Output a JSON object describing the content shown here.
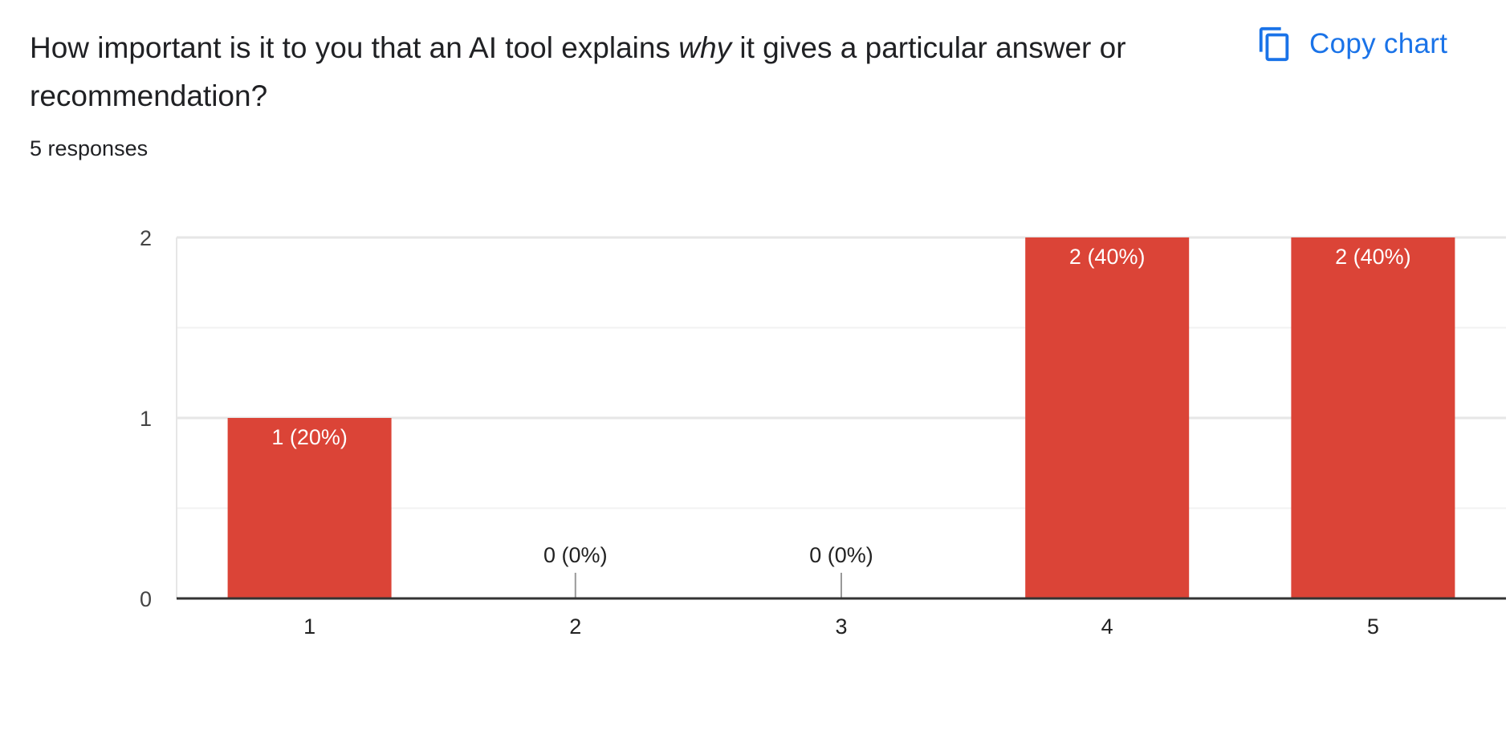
{
  "question": {
    "before": "How important is it to you that an AI tool explains ",
    "emphasis": "why",
    "after": " it gives a particular answer or recommendation?"
  },
  "response_count": "5 responses",
  "copy_button": {
    "label": "Copy chart",
    "icon": "copy-icon"
  },
  "colors": {
    "bar": "#db4437",
    "accent": "#1a73e8",
    "axis": "#333333",
    "grid": "#e6e6e6",
    "minor_grid": "#f2f2f2",
    "bar_label_inside": "#ffffff",
    "bar_label_outside": "#222222"
  },
  "chart_data": {
    "type": "bar",
    "categories": [
      "1",
      "2",
      "3",
      "4",
      "5"
    ],
    "values": [
      1,
      0,
      0,
      2,
      2
    ],
    "data_labels": [
      "1 (20%)",
      "0 (0%)",
      "0 (0%)",
      "2 (40%)",
      "2 (40%)"
    ],
    "y_ticks": [
      "0",
      "1",
      "2"
    ],
    "ylim": [
      0,
      2
    ],
    "grid": true,
    "title": "",
    "xlabel": "",
    "ylabel": ""
  }
}
